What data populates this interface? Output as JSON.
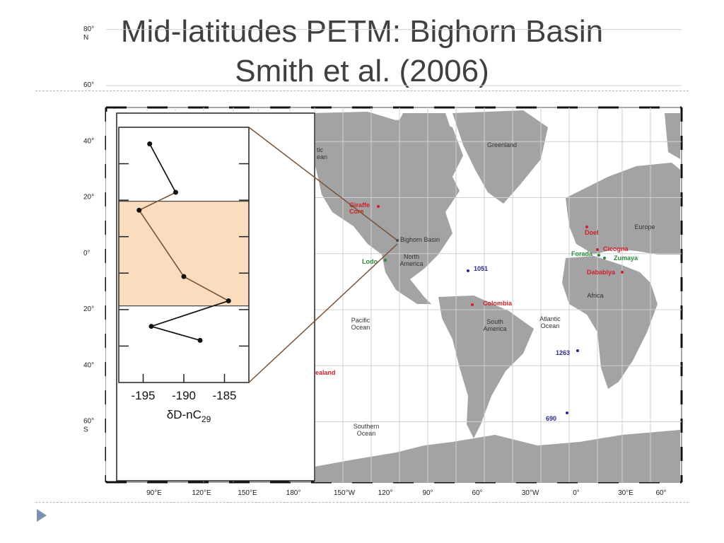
{
  "slide": {
    "title_line1": "Mid-latitudes PETM: Bighorn Basin",
    "title_line2": "Smith et al. (2006)"
  },
  "map": {
    "lat_labels": [
      {
        "deg": "80",
        "hemi": "N",
        "lat": 80
      },
      {
        "deg": "60",
        "hemi": "",
        "lat": 60
      },
      {
        "deg": "40",
        "hemi": "",
        "lat": 40
      },
      {
        "deg": "20",
        "hemi": "",
        "lat": 20
      },
      {
        "deg": "0",
        "hemi": "",
        "lat": 0
      },
      {
        "deg": "20",
        "hemi": "",
        "lat": -20
      },
      {
        "deg": "40",
        "hemi": "",
        "lat": -40
      },
      {
        "deg": "60",
        "hemi": "S",
        "lat": -60
      }
    ],
    "lon_labels": [
      "90°E",
      "120°E",
      "150°E",
      "180°",
      "150°W",
      "120°",
      "90°",
      "60°",
      "30°W",
      "0°",
      "30°E",
      "60°"
    ],
    "region_labels": [
      {
        "text": "Greenland",
        "lines": [
          "Greenland"
        ]
      },
      {
        "text": "Europe",
        "lines": [
          "Europe"
        ]
      },
      {
        "text": "Africa",
        "lines": [
          "Africa"
        ]
      },
      {
        "text": "North America",
        "lines": [
          "North",
          "America"
        ]
      },
      {
        "text": "South America",
        "lines": [
          "South",
          "America"
        ]
      },
      {
        "text": "Atlantic Ocean",
        "lines": [
          "Atlantic",
          "Ocean"
        ]
      },
      {
        "text": "Pacific Ocean",
        "lines": [
          "Pacific",
          "Ocean"
        ]
      },
      {
        "text": "Southern Ocean",
        "lines": [
          "Southern",
          "Ocean"
        ]
      },
      {
        "text": "Arctic Ocean",
        "lines": [
          "tic",
          "ean"
        ]
      }
    ],
    "sites": [
      {
        "name": "Giraffe Core",
        "lines": [
          "Giraffe",
          "Core"
        ],
        "color": "red"
      },
      {
        "name": "Bighorn Basin",
        "lines": [
          "Bighorn Basin"
        ],
        "color": "dark"
      },
      {
        "name": "Lodo",
        "lines": [
          "Lodo"
        ],
        "color": "green"
      },
      {
        "name": "1051",
        "lines": [
          "1051"
        ],
        "color": "blue"
      },
      {
        "name": "Colombia",
        "lines": [
          "Colombia"
        ],
        "color": "red"
      },
      {
        "name": "Doel",
        "lines": [
          "Doel"
        ],
        "color": "red"
      },
      {
        "name": "Cicogna",
        "lines": [
          "Cicogna"
        ],
        "color": "red"
      },
      {
        "name": "Forada",
        "lines": [
          "Forada"
        ],
        "color": "green"
      },
      {
        "name": "Zumaya",
        "lines": [
          "Zumaya"
        ],
        "color": "green"
      },
      {
        "name": "Dababiya",
        "lines": [
          "Dababiya"
        ],
        "color": "red"
      },
      {
        "name": "1263",
        "lines": [
          "1263"
        ],
        "color": "blue"
      },
      {
        "name": "690",
        "lines": [
          "690"
        ],
        "color": "blue"
      },
      {
        "name": "New Zealand",
        "lines": [
          "ealand"
        ],
        "color": "red"
      }
    ]
  },
  "chart_data": {
    "type": "line",
    "title": "",
    "xlabel": "δD-nC29",
    "xlabel_main": "δD-nC",
    "xlabel_sub": "29",
    "ylabel": "",
    "xlim": [
      -198,
      -182
    ],
    "xticks": [
      -195,
      -190,
      -185
    ],
    "xtick_labels": [
      "-195",
      "-190",
      "-185"
    ],
    "ylim": [
      0,
      10
    ],
    "series": [
      {
        "values": [
          {
            "x": -194.2,
            "y": 9.35
          },
          {
            "x": -191.0,
            "y": 7.45
          },
          {
            "x": -195.5,
            "y": 6.75
          },
          {
            "x": -190.0,
            "y": 4.15
          },
          {
            "x": -184.5,
            "y": 3.2
          },
          {
            "x": -194.0,
            "y": 2.2
          },
          {
            "x": -188.0,
            "y": 1.65
          }
        ]
      }
    ],
    "highlight_band": {
      "y_from": 3.0,
      "y_to": 7.1,
      "color": "#fadcbf"
    }
  }
}
